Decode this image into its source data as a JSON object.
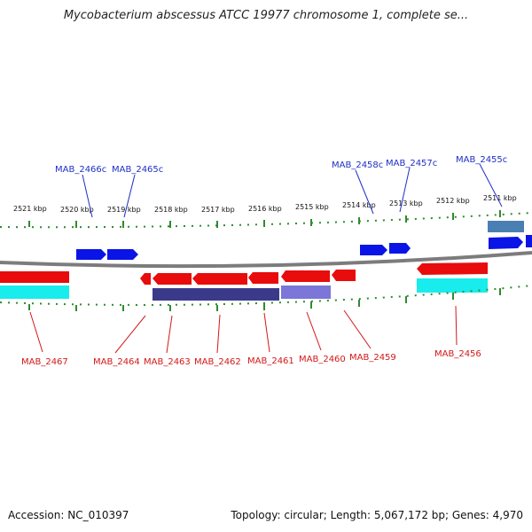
{
  "title": "Mycobacterium abscessus ATCC 19977 chromosome 1, complete se...",
  "footer": {
    "accession": "Accession: NC_010397",
    "summary": "Topology: circular; Length: 5,067,172 bp; Genes: 4,970"
  },
  "colors": {
    "backbone": "#8a8a8a",
    "tick": "#2e8b2e",
    "forward_gene": "#0a14e6",
    "reverse_gene": "#e80c0c",
    "forward_label": "#1f2fc7",
    "reverse_label": "#d41818",
    "cds_cyan": "#19ecec",
    "cds_navy": "#3b3a8a",
    "cds_lavender": "#7b76d8",
    "cds_steel": "#4a7fb3"
  },
  "kbp_labels": [
    "2521 kbp",
    "2520 kbp",
    "2519 kbp",
    "2518 kbp",
    "2517 kbp",
    "2516 kbp",
    "2515 kbp",
    "2514 kbp",
    "2513 kbp",
    "2512 kbp",
    "2511 kbp"
  ],
  "top_gene_labels": [
    "MAB_2466c",
    "MAB_2465c",
    "MAB_2458c",
    "MAB_2457c",
    "MAB_2455c"
  ],
  "bottom_gene_labels": [
    "MAB_2467",
    "MAB_2464",
    "MAB_2463",
    "MAB_2462",
    "MAB_2461",
    "MAB_2460",
    "MAB_2459",
    "MAB_2456"
  ]
}
